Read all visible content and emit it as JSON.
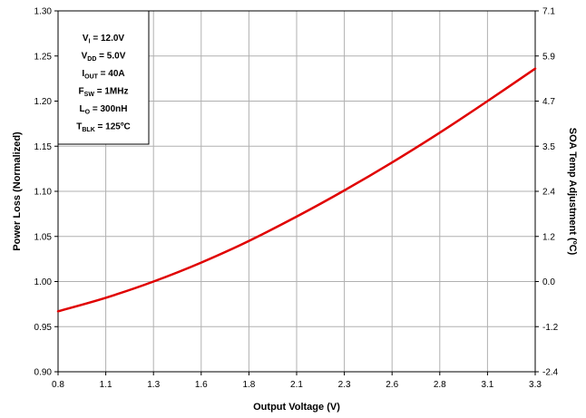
{
  "chart_data": {
    "type": "line",
    "title": "",
    "xlabel": "Output Voltage (V)",
    "ylabel": "Power Loss (Normalized)",
    "y2label": "SOA Temp Adjustment (ºC)",
    "xlim": [
      0.8,
      3.3
    ],
    "ylim": [
      0.9,
      1.3
    ],
    "y2lim": [
      -2.4,
      7.1
    ],
    "x_ticks": [
      "0.8",
      "1.1",
      "1.3",
      "1.6",
      "1.8",
      "2.1",
      "2.3",
      "2.6",
      "2.8",
      "3.1",
      "3.3"
    ],
    "y_ticks": [
      "0.90",
      "0.95",
      "1.00",
      "1.05",
      "1.10",
      "1.15",
      "1.20",
      "1.25",
      "1.30"
    ],
    "y2_ticks": [
      "-2.4",
      "-1.2",
      "0.0",
      "1.2",
      "2.4",
      "3.5",
      "4.7",
      "5.9",
      "7.1"
    ],
    "grid": true,
    "line_color": "#e00000",
    "series": [
      {
        "x": [
          0.8,
          1.05,
          1.3,
          1.55,
          1.8,
          2.05,
          2.3,
          2.55,
          2.8,
          3.05,
          3.3
        ],
        "values": [
          0.967,
          0.982,
          1.0,
          1.021,
          1.045,
          1.072,
          1.101,
          1.132,
          1.165,
          1.2,
          1.236
        ]
      }
    ],
    "annotation": {
      "lines": [
        {
          "main": "V",
          "sub": "I",
          "rest": " = 12.0V"
        },
        {
          "main": "V",
          "sub": "DD",
          "rest": " = 5.0V"
        },
        {
          "main": "I",
          "sub": "OUT",
          "rest": " = 40A"
        },
        {
          "main": "F",
          "sub": "SW",
          "rest": " = 1MHz"
        },
        {
          "main": "L",
          "sub": "O",
          "rest": " = 300nH"
        },
        {
          "main": "T",
          "sub": "BLK",
          "rest": " = 125ºC"
        }
      ]
    }
  }
}
